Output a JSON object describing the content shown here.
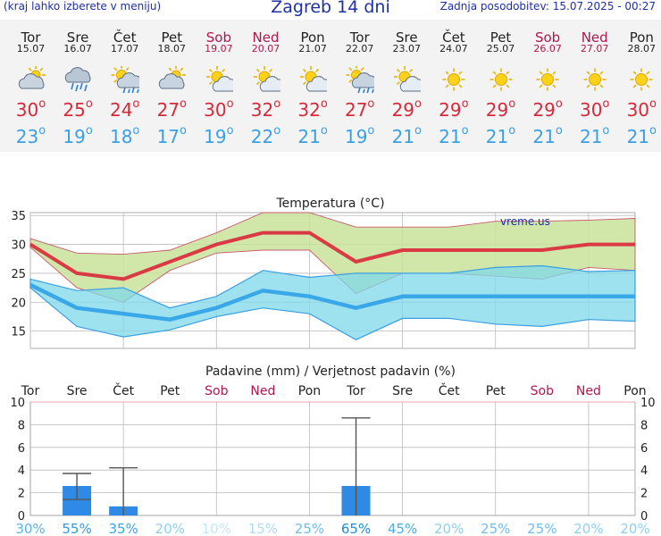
{
  "header": {
    "left_text": "(kraj lahko izberete v meniju)",
    "title": "Zagreb 14 dni",
    "updated": "Zadnja posodobitev: 15.07.2025 - 00:27"
  },
  "colors": {
    "weekday": "#222222",
    "weekend": "#b0164d",
    "high": "#d8283a",
    "low": "#3aa0e6"
  },
  "days": [
    {
      "name": "Tor",
      "date": "15.07",
      "weekend": false,
      "icon": "cloudy-sun-icon",
      "high": "30",
      "low": "23"
    },
    {
      "name": "Sre",
      "date": "16.07",
      "weekend": false,
      "icon": "rain-cloud-icon",
      "high": "25",
      "low": "19"
    },
    {
      "name": "Čet",
      "date": "17.07",
      "weekend": false,
      "icon": "sun-rain-icon",
      "high": "24",
      "low": "18"
    },
    {
      "name": "Pet",
      "date": "18.07",
      "weekend": false,
      "icon": "cloudy-sun-icon",
      "high": "27",
      "low": "17"
    },
    {
      "name": "Sob",
      "date": "19.07",
      "weekend": true,
      "icon": "sun-cloud-icon",
      "high": "30",
      "low": "19"
    },
    {
      "name": "Ned",
      "date": "20.07",
      "weekend": true,
      "icon": "sun-cloud-icon",
      "high": "32",
      "low": "22"
    },
    {
      "name": "Pon",
      "date": "21.07",
      "weekend": false,
      "icon": "sun-cloud-icon",
      "high": "32",
      "low": "21"
    },
    {
      "name": "Tor",
      "date": "22.07",
      "weekend": false,
      "icon": "sun-rain-icon",
      "high": "27",
      "low": "19"
    },
    {
      "name": "Sre",
      "date": "23.07",
      "weekend": false,
      "icon": "sun-cloud-icon",
      "high": "29",
      "low": "21"
    },
    {
      "name": "Čet",
      "date": "24.07",
      "weekend": false,
      "icon": "sun-icon",
      "high": "29",
      "low": "21"
    },
    {
      "name": "Pet",
      "date": "25.07",
      "weekend": false,
      "icon": "sun-icon",
      "high": "29",
      "low": "21"
    },
    {
      "name": "Sob",
      "date": "26.07",
      "weekend": true,
      "icon": "sun-icon",
      "high": "29",
      "low": "21"
    },
    {
      "name": "Ned",
      "date": "27.07",
      "weekend": true,
      "icon": "sun-icon",
      "high": "30",
      "low": "21"
    },
    {
      "name": "Pon",
      "date": "28.07",
      "weekend": false,
      "icon": "sun-icon",
      "high": "30",
      "low": "21"
    }
  ],
  "chart_data": [
    {
      "type": "line",
      "title": "Temperatura (°C)",
      "watermark": "vreme.us",
      "ylim": [
        12,
        35.5
      ],
      "yticks": [
        15,
        20,
        25,
        30,
        35
      ],
      "grid": true,
      "series": [
        {
          "values": [
            30,
            25,
            24,
            27,
            30,
            32,
            32,
            27,
            29,
            29,
            29,
            29,
            30,
            30
          ],
          "color": "#d93a44"
        },
        {
          "values": [
            23,
            19,
            18,
            17,
            19,
            22,
            21,
            19,
            21,
            21,
            21,
            21,
            21,
            21
          ],
          "color": "#3aa8e8"
        }
      ],
      "high_band": {
        "upper": [
          31,
          28.5,
          28.3,
          29,
          32,
          35.5,
          35.5,
          33,
          33,
          33,
          34,
          34,
          34.2,
          34.5
        ],
        "lower": [
          29.5,
          22.5,
          20,
          25.5,
          28.5,
          29,
          29,
          21.5,
          25,
          25,
          24.5,
          24,
          26,
          25.5
        ]
      },
      "low_band": {
        "upper": [
          24,
          22,
          22.5,
          19,
          21,
          25.5,
          24.3,
          25,
          25,
          25,
          26,
          26.3,
          25.3,
          25.5
        ],
        "lower": [
          22.5,
          15.8,
          14,
          15.2,
          17.5,
          19,
          18,
          13.5,
          17.2,
          17.2,
          16.2,
          15.8,
          17,
          16.7
        ]
      }
    },
    {
      "type": "bar",
      "title": "Padavine (mm) / Verjetnost padavin (%)",
      "ylim": [
        0,
        10
      ],
      "yticks": [
        0,
        2,
        4,
        6,
        8,
        10
      ],
      "categories": [
        "Tor",
        "Sre",
        "Čet",
        "Pet",
        "Sob",
        "Ned",
        "Pon",
        "Tor",
        "Sre",
        "Čet",
        "Pet",
        "Sob",
        "Ned",
        "Pon"
      ],
      "weekend": [
        false,
        false,
        false,
        false,
        true,
        true,
        false,
        false,
        false,
        false,
        false,
        true,
        true,
        false
      ],
      "values": [
        0,
        2.6,
        0.8,
        0,
        0,
        0,
        0,
        2.6,
        0,
        0,
        0,
        0,
        0,
        0
      ],
      "error_low": [
        null,
        1.4,
        0,
        null,
        null,
        null,
        null,
        0,
        null,
        null,
        null,
        null,
        null,
        null
      ],
      "error_high": [
        null,
        3.7,
        4.2,
        null,
        null,
        null,
        null,
        8.6,
        null,
        null,
        null,
        null,
        null,
        null
      ],
      "probability": [
        "30%",
        "55%",
        "35%",
        "20%",
        "10%",
        "15%",
        "25%",
        "65%",
        "45%",
        "20%",
        "25%",
        "25%",
        "20%",
        "20%"
      ],
      "probability_colors": [
        "#5ab4ec",
        "#2e9be3",
        "#3aa5e8",
        "#8ed0f3",
        "#c2e6f9",
        "#aedcf6",
        "#6dbeef",
        "#1d8fde",
        "#4aaeea",
        "#8ed0f3",
        "#6dbeef",
        "#6dbeef",
        "#8ed0f3",
        "#8ed0f3"
      ],
      "bar_color": "#2f8ae6"
    }
  ]
}
